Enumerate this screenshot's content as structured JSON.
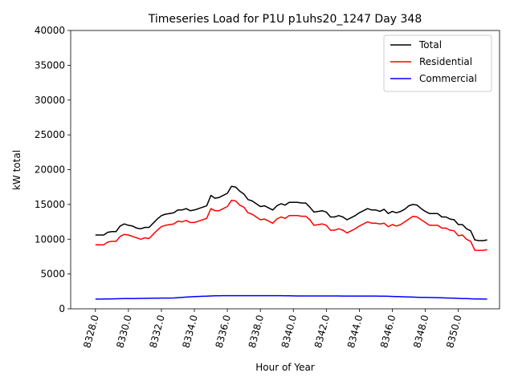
{
  "chart_data": {
    "type": "line",
    "title": "Timeseries Load for P1U p1uhs20_1247  Day 348",
    "xlabel": "Hour of Year",
    "ylabel": "kW total",
    "xlim": [
      8326.5,
      8352.5
    ],
    "ylim": [
      0,
      40000
    ],
    "xticks": [
      8328,
      8330,
      8332,
      8334,
      8336,
      8338,
      8340,
      8342,
      8344,
      8346,
      8348,
      8350
    ],
    "xtick_labels": [
      "8328.0",
      "8330.0",
      "8332.0",
      "8334.0",
      "8336.0",
      "8338.0",
      "8340.0",
      "8342.0",
      "8344.0",
      "8346.0",
      "8348.0",
      "8350.0"
    ],
    "yticks": [
      0,
      5000,
      10000,
      15000,
      20000,
      25000,
      30000,
      35000,
      40000
    ],
    "ytick_labels": [
      "0",
      "5000",
      "10000",
      "15000",
      "20000",
      "25000",
      "30000",
      "35000",
      "40000"
    ],
    "legend_position": "top-right",
    "x": [
      8328.0,
      8328.25,
      8328.5,
      8328.75,
      8329.0,
      8329.25,
      8329.5,
      8329.75,
      8330.0,
      8330.25,
      8330.5,
      8330.75,
      8331.0,
      8331.25,
      8331.5,
      8331.75,
      8332.0,
      8332.25,
      8332.5,
      8332.75,
      8333.0,
      8333.25,
      8333.5,
      8333.75,
      8334.0,
      8334.25,
      8334.5,
      8334.75,
      8335.0,
      8335.25,
      8335.5,
      8335.75,
      8336.0,
      8336.25,
      8336.5,
      8336.75,
      8337.0,
      8337.25,
      8337.5,
      8337.75,
      8338.0,
      8338.25,
      8338.5,
      8338.75,
      8339.0,
      8339.25,
      8339.5,
      8339.75,
      8340.0,
      8340.25,
      8340.5,
      8340.75,
      8341.0,
      8341.25,
      8341.5,
      8341.75,
      8342.0,
      8342.25,
      8342.5,
      8342.75,
      8343.0,
      8343.25,
      8343.5,
      8343.75,
      8344.0,
      8344.25,
      8344.5,
      8344.75,
      8345.0,
      8345.25,
      8345.5,
      8345.75,
      8346.0,
      8346.25,
      8346.5,
      8346.75,
      8347.0,
      8347.25,
      8347.5,
      8347.75,
      8348.0,
      8348.25,
      8348.5,
      8348.75,
      8349.0,
      8349.25,
      8349.5,
      8349.75,
      8350.0,
      8350.25,
      8350.5,
      8350.75,
      8351.0,
      8351.25,
      8351.5,
      8351.75
    ],
    "series": [
      {
        "name": "Total",
        "color": "#000000",
        "values": [
          10600,
          10600,
          10600,
          11000,
          11100,
          11100,
          11900,
          12200,
          12000,
          11900,
          11600,
          11500,
          11700,
          11700,
          12300,
          12900,
          13400,
          13600,
          13700,
          13800,
          14200,
          14200,
          14400,
          14100,
          14200,
          14400,
          14600,
          14800,
          16300,
          15900,
          16000,
          16300,
          16600,
          17600,
          17500,
          16900,
          16500,
          15700,
          15500,
          15100,
          14700,
          14800,
          14500,
          14200,
          14800,
          15100,
          14900,
          15300,
          15300,
          15300,
          15200,
          15200,
          14600,
          13900,
          14000,
          14100,
          13900,
          13200,
          13200,
          13400,
          13200,
          12800,
          13100,
          13400,
          13800,
          14100,
          14400,
          14200,
          14200,
          14000,
          14300,
          13700,
          14000,
          13800,
          14000,
          14300,
          14800,
          15000,
          14900,
          14400,
          14000,
          13700,
          13700,
          13700,
          13200,
          13200,
          12900,
          12800,
          12100,
          12100,
          11500,
          11200,
          9900,
          9800,
          9800,
          9900
        ]
      },
      {
        "name": "Residential",
        "color": "#ff0000",
        "values": [
          9200,
          9200,
          9200,
          9600,
          9700,
          9700,
          10400,
          10700,
          10600,
          10400,
          10200,
          10000,
          10200,
          10100,
          10700,
          11300,
          11800,
          12000,
          12100,
          12200,
          12600,
          12500,
          12700,
          12400,
          12400,
          12600,
          12800,
          13000,
          14400,
          14100,
          14100,
          14400,
          14700,
          15600,
          15500,
          14900,
          14600,
          13800,
          13600,
          13200,
          12800,
          12900,
          12600,
          12300,
          12900,
          13200,
          13000,
          13400,
          13400,
          13400,
          13300,
          13300,
          12800,
          12000,
          12100,
          12200,
          12000,
          11300,
          11300,
          11500,
          11300,
          10900,
          11200,
          11500,
          11900,
          12200,
          12500,
          12300,
          12300,
          12200,
          12300,
          11800,
          12100,
          11900,
          12100,
          12500,
          12900,
          13300,
          13200,
          12800,
          12400,
          12000,
          12000,
          12000,
          11600,
          11600,
          11300,
          11200,
          10500,
          10600,
          10000,
          9700,
          8400,
          8400,
          8400,
          8500
        ]
      },
      {
        "name": "Commercial",
        "color": "#0000ff",
        "values": [
          1400,
          1400,
          1410,
          1420,
          1430,
          1440,
          1450,
          1460,
          1470,
          1480,
          1490,
          1500,
          1500,
          1510,
          1520,
          1530,
          1540,
          1540,
          1550,
          1560,
          1600,
          1640,
          1680,
          1720,
          1760,
          1780,
          1800,
          1820,
          1850,
          1870,
          1880,
          1890,
          1890,
          1890,
          1890,
          1890,
          1890,
          1890,
          1890,
          1890,
          1890,
          1890,
          1890,
          1890,
          1890,
          1890,
          1880,
          1870,
          1860,
          1850,
          1840,
          1840,
          1840,
          1850,
          1850,
          1850,
          1850,
          1840,
          1840,
          1840,
          1830,
          1830,
          1830,
          1830,
          1830,
          1830,
          1830,
          1830,
          1830,
          1820,
          1810,
          1800,
          1780,
          1760,
          1740,
          1720,
          1700,
          1680,
          1660,
          1650,
          1640,
          1620,
          1610,
          1600,
          1580,
          1560,
          1540,
          1520,
          1500,
          1480,
          1460,
          1440,
          1420,
          1410,
          1400,
          1390
        ]
      }
    ]
  }
}
